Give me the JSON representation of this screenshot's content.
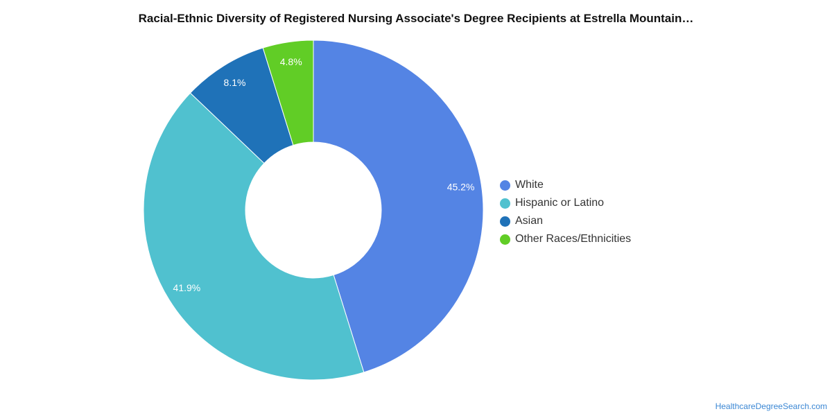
{
  "chart_data": {
    "type": "pie",
    "title": "Racial-Ethnic Diversity of Registered Nursing Associate's Degree Recipients at Estrella Mountain…",
    "donut": true,
    "legend_position": "right",
    "slices": [
      {
        "name": "White",
        "value": 45.2,
        "label": "45.2%",
        "color": "#5484e4"
      },
      {
        "name": "Hispanic or Latino",
        "value": 41.9,
        "label": "41.9%",
        "color": "#50c1cf"
      },
      {
        "name": "Asian",
        "value": 8.1,
        "label": "8.1%",
        "color": "#1f72b8"
      },
      {
        "name": "Other Races/Ethnicities",
        "value": 4.8,
        "label": "4.8%",
        "color": "#61cd26"
      }
    ]
  },
  "source": {
    "text": "HealthcareDegreeSearch.com"
  }
}
